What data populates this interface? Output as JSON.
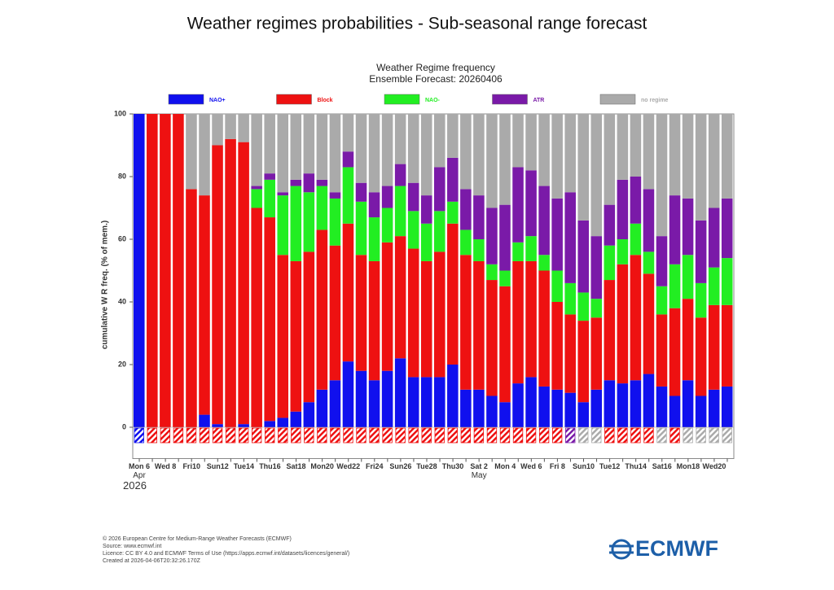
{
  "page_title": "Weather regimes probabilities - Sub-seasonal range forecast",
  "chart_data": {
    "type": "stacked-bar",
    "title": "Weather Regime frequency",
    "subtitle": "Ensemble Forecast: 20260406",
    "y_label": "cumulative W R freq. (% of mem.)",
    "categories": [
      "Mon 6",
      null,
      "Wed 8",
      null,
      "Fri10",
      null,
      "Sun12",
      null,
      "Tue14",
      null,
      "Thu16",
      null,
      "Sat18",
      null,
      "Mon20",
      null,
      "Wed22",
      null,
      "Fri24",
      null,
      "Sun26",
      null,
      "Tue28",
      null,
      "Thu30",
      null,
      "Sat 2",
      null,
      "Mon 4",
      null,
      "Wed 6",
      null,
      "Fri 8",
      null,
      "Sun10",
      null,
      "Tue12",
      null,
      "Thu14",
      null,
      "Sat16",
      null,
      "Mon18",
      null,
      "Wed20",
      null
    ],
    "month_labels": [
      {
        "index": 0,
        "label": "Apr"
      },
      {
        "index": 26,
        "label": "May"
      }
    ],
    "year_label": "2026",
    "series": [
      {
        "name": "NAO+",
        "color": "#1010ee",
        "values": [
          100,
          0,
          0,
          0,
          0,
          4,
          1,
          0,
          1,
          0,
          2,
          3,
          5,
          8,
          12,
          15,
          21,
          18,
          15,
          18,
          22,
          16,
          16,
          16,
          20,
          12,
          12,
          10,
          8,
          14,
          16,
          13,
          12,
          11,
          8,
          12,
          15,
          14,
          15,
          17,
          13,
          10,
          15,
          10,
          12,
          13
        ]
      },
      {
        "name": "Block",
        "color": "#ee1111",
        "values": [
          0,
          100,
          100,
          100,
          76,
          70,
          89,
          92,
          90,
          70,
          65,
          52,
          48,
          48,
          51,
          43,
          44,
          37,
          38,
          41,
          39,
          41,
          37,
          40,
          45,
          43,
          41,
          37,
          37,
          39,
          37,
          37,
          28,
          25,
          26,
          23,
          32,
          38,
          40,
          32,
          23,
          28,
          26,
          25,
          27,
          26
        ]
      },
      {
        "name": "NAO-",
        "color": "#22ee22",
        "values": [
          0,
          0,
          0,
          0,
          0,
          0,
          0,
          0,
          0,
          6,
          12,
          19,
          24,
          19,
          14,
          15,
          18,
          17,
          14,
          11,
          16,
          12,
          12,
          13,
          7,
          8,
          7,
          5,
          5,
          6,
          8,
          5,
          10,
          10,
          9,
          6,
          11,
          8,
          10,
          7,
          9,
          14,
          14,
          11,
          12,
          15
        ]
      },
      {
        "name": "ATR",
        "color": "#7a1aa8",
        "values": [
          0,
          0,
          0,
          0,
          0,
          0,
          0,
          0,
          0,
          1,
          2,
          1,
          2,
          6,
          2,
          2,
          5,
          6,
          8,
          7,
          7,
          9,
          9,
          14,
          14,
          13,
          14,
          18,
          21,
          24,
          21,
          22,
          23,
          29,
          23,
          20,
          13,
          19,
          15,
          20,
          16,
          22,
          18,
          20,
          19,
          19
        ]
      },
      {
        "name": "no regime",
        "color": "#aaaaaa",
        "values": [
          0,
          0,
          0,
          0,
          24,
          26,
          10,
          8,
          9,
          23,
          19,
          25,
          21,
          19,
          21,
          25,
          12,
          22,
          25,
          23,
          16,
          22,
          26,
          17,
          14,
          24,
          26,
          30,
          29,
          17,
          18,
          23,
          27,
          25,
          34,
          39,
          29,
          21,
          20,
          24,
          39,
          26,
          27,
          34,
          30,
          27
        ]
      }
    ],
    "ylim": [
      -10,
      100
    ],
    "yticks": [
      0,
      20,
      40,
      60,
      80,
      100
    ]
  },
  "footer": [
    "© 2026 European Centre for Medium-Range Weather Forecasts (ECMWF)",
    "Source: www.ecmwf.int",
    "Licence: CC BY 4.0 and ECMWF Terms of Use (https://apps.ecmwf.int/datasets/licences/general/)",
    "Created at 2026-04-06T20:32:26.170Z"
  ],
  "logo": "ECMWF"
}
